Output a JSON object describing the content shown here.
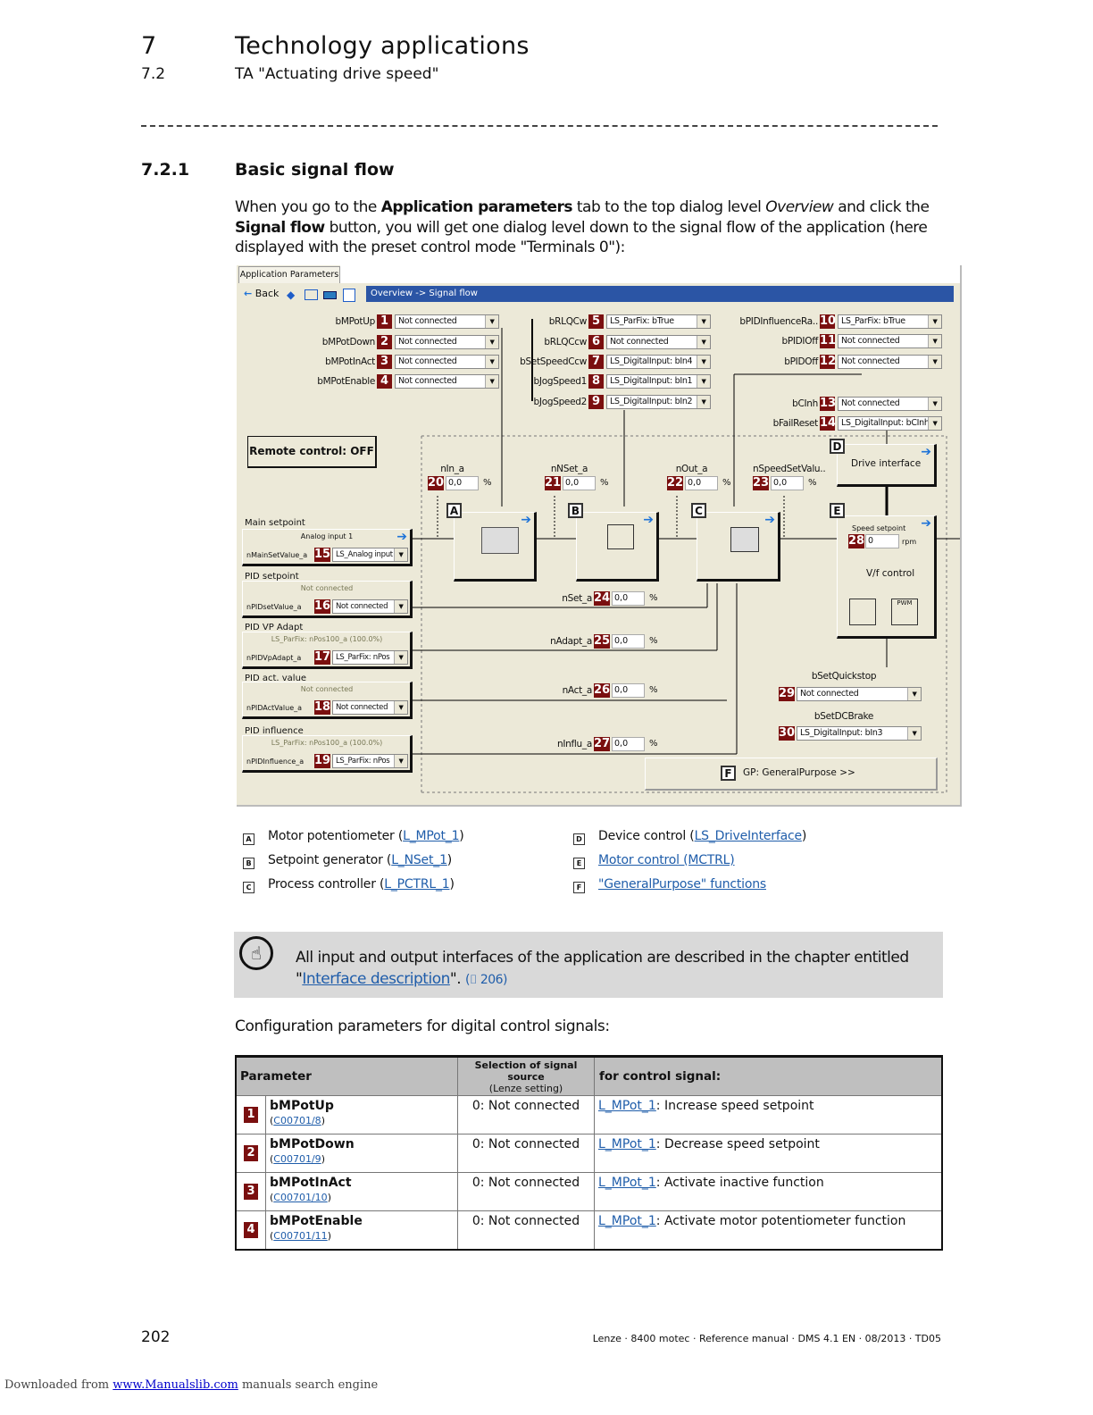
{
  "header": {
    "chapter_num": "7",
    "chapter_title": "Technology applications",
    "section_num": "7.2",
    "section_title": "TA \"Actuating drive speed\""
  },
  "subsection": {
    "num": "7.2.1",
    "title": "Basic signal flow"
  },
  "intro": {
    "t1": "When you go to the ",
    "b1": "Application parameters",
    "t2": " tab to the top dialog level ",
    "i1": "Overview",
    "t3": " and click the ",
    "b2": "Signal flow",
    "t4": " button, you will get one dialog level down to the signal flow of the application (here displayed with the preset control mode \"Terminals 0\"):"
  },
  "dialog": {
    "tab": "Application Parameters",
    "back": "Back",
    "breadcrumb": "Overview -> Signal flow",
    "remote": "Remote control: OFF",
    "inputs": [
      {
        "label": "bMPotUp",
        "num": "1",
        "value": "Not connected"
      },
      {
        "label": "bMPotDown",
        "num": "2",
        "value": "Not connected"
      },
      {
        "label": "bMPotInAct",
        "num": "3",
        "value": "Not connected"
      },
      {
        "label": "bMPotEnable",
        "num": "4",
        "value": "Not connected"
      },
      {
        "label": "bRLQCw",
        "num": "5",
        "value": "LS_ParFix: bTrue"
      },
      {
        "label": "bRLQCcw",
        "num": "6",
        "value": "Not connected"
      },
      {
        "label": "bSetSpeedCcw",
        "num": "7",
        "value": "LS_DigitalInput: bIn4"
      },
      {
        "label": "bJogSpeed1",
        "num": "8",
        "value": "LS_DigitalInput: bIn1"
      },
      {
        "label": "bJogSpeed2",
        "num": "9",
        "value": "LS_DigitalInput: bIn2"
      },
      {
        "label": "bPIDInfluenceRa..",
        "num": "10",
        "value": "LS_ParFix: bTrue"
      },
      {
        "label": "bPIDIOff",
        "num": "11",
        "value": "Not connected"
      },
      {
        "label": "bPIDOff",
        "num": "12",
        "value": "Not connected"
      },
      {
        "label": "bCInh",
        "num": "13",
        "value": "Not connected"
      },
      {
        "label": "bFailReset",
        "num": "14",
        "value": "LS_DigitalInput: bCInh"
      }
    ],
    "setpoints": [
      {
        "group": "Main setpoint",
        "source": "Analog input 1",
        "label": "nMainSetValue_a",
        "num": "15",
        "value": "LS_Analog input"
      },
      {
        "group": "PID setpoint",
        "source": "Not connected",
        "label": "nPIDsetValue_a",
        "num": "16",
        "value": "Not connected"
      },
      {
        "group": "PID VP Adapt",
        "source": "LS_ParFix: nPos100_a (100.0%)",
        "label": "nPIDVpAdapt_a",
        "num": "17",
        "value": "LS_ParFix: nPos"
      },
      {
        "group": "PID act. value",
        "source": "Not connected",
        "label": "nPIDActValue_a",
        "num": "18",
        "value": "Not connected"
      },
      {
        "group": "PID influence",
        "source": "LS_ParFix: nPos100_a (100.0%)",
        "label": "nPIDInfluence_a",
        "num": "19",
        "value": "LS_ParFix: nPos"
      }
    ],
    "monitors": [
      {
        "label": "nIn_a",
        "num": "20",
        "value": "0,0",
        "unit": "%"
      },
      {
        "label": "nNSet_a",
        "num": "21",
        "value": "0,0",
        "unit": "%"
      },
      {
        "label": "nOut_a",
        "num": "22",
        "value": "0,0",
        "unit": "%"
      },
      {
        "label": "nSpeedSetValu..",
        "num": "23",
        "value": "0,0",
        "unit": "%"
      },
      {
        "label": "nSet_a",
        "num": "24",
        "value": "0,0",
        "unit": "%"
      },
      {
        "label": "nAdapt_a",
        "num": "25",
        "value": "0,0",
        "unit": "%"
      },
      {
        "label": "nAct_a",
        "num": "26",
        "value": "0,0",
        "unit": "%"
      },
      {
        "label": "nInflu_a",
        "num": "27",
        "value": "0,0",
        "unit": "%"
      }
    ],
    "blocks": {
      "A": "A",
      "B": "B",
      "C": "C",
      "D": "D",
      "E": "E",
      "F": "F",
      "drive_interface": "Drive interface",
      "speed_setpoint": "Speed setpoint",
      "speed_num": "28",
      "speed_value": "0",
      "speed_unit": "rpm",
      "vf": "V/f control",
      "pwm": "PWM",
      "gp": "GP: GeneralPurpose >>"
    },
    "quickstop": {
      "label": "bSetQuickstop",
      "num": "29",
      "value": "Not connected"
    },
    "dcbrake": {
      "label": "bSetDCBrake",
      "num": "30",
      "value": "LS_DigitalInput: bIn3"
    }
  },
  "legend": [
    {
      "key": "A",
      "text": "Motor potentiometer (",
      "link": "L_MPot_1",
      "end": ")"
    },
    {
      "key": "B",
      "text": "Setpoint generator (",
      "link": "L_NSet_1",
      "end": ")"
    },
    {
      "key": "C",
      "text": "Process controller (",
      "link": "L_PCTRL_1",
      "end": ")"
    },
    {
      "key": "D",
      "text": "Device control (",
      "link": "LS_DriveInterface",
      "end": ")"
    },
    {
      "key": "E",
      "text": "",
      "link": "Motor control (MCTRL)",
      "end": ""
    },
    {
      "key": "F",
      "text": "",
      "link": "\"GeneralPurpose\" functions",
      "end": ""
    }
  ],
  "note": {
    "text": "All input and output interfaces of the application are described in the chapter entitled \"",
    "link": "Interface description",
    "end": "\". ",
    "ref": "(⌷ 206)"
  },
  "config_heading": "Configuration parameters for digital control signals:",
  "table": {
    "h1": "Parameter",
    "h2a": "Selection of signal source",
    "h2b": "(Lenze setting)",
    "h3": "for control signal:",
    "rows": [
      {
        "num": "1",
        "param": "bMPotUp",
        "code": "C00701/8",
        "sel": "0: Not connected",
        "link": "L_MPot_1",
        "desc": ": Increase speed setpoint"
      },
      {
        "num": "2",
        "param": "bMPotDown",
        "code": "C00701/9",
        "sel": "0: Not connected",
        "link": "L_MPot_1",
        "desc": ": Decrease speed setpoint"
      },
      {
        "num": "3",
        "param": "bMPotInAct",
        "code": "C00701/10",
        "sel": "0: Not connected",
        "link": "L_MPot_1",
        "desc": ": Activate inactive function"
      },
      {
        "num": "4",
        "param": "bMPotEnable",
        "code": "C00701/11",
        "sel": "0: Not connected",
        "link": "L_MPot_1",
        "desc": ": Activate motor potentiometer function"
      }
    ]
  },
  "footer": {
    "page": "202",
    "doc": "Lenze · 8400 motec · Reference manual · DMS 4.1 EN · 08/2013 · TD05"
  },
  "download": {
    "text": "Downloaded from ",
    "link": "www.Manualslib.com",
    "end": " manuals search engine"
  }
}
